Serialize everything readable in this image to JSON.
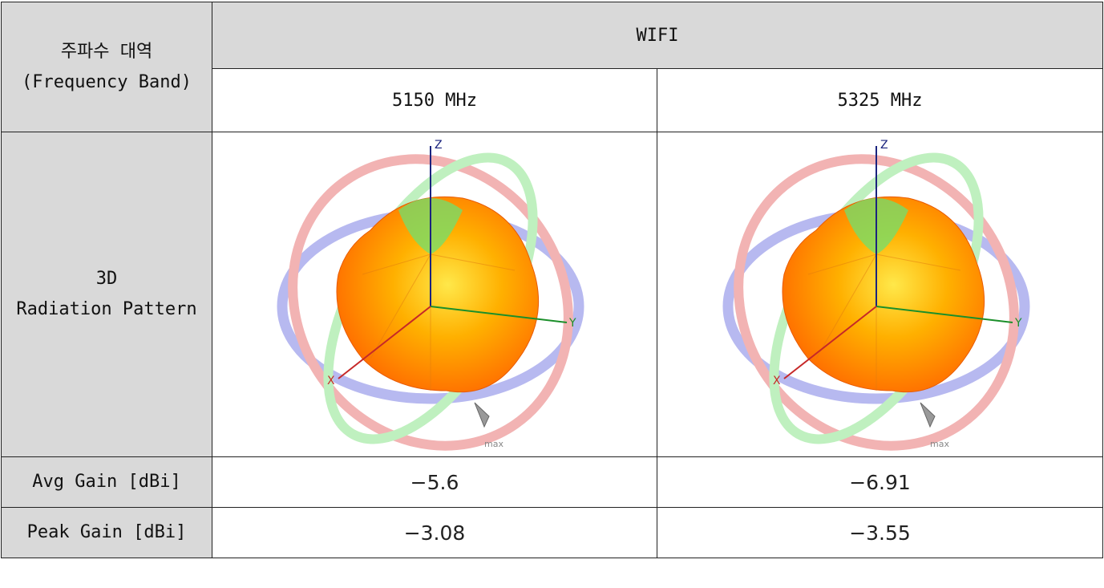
{
  "table": {
    "band_label_kr": "주파수 대역",
    "band_label_en": "(Frequency Band)",
    "band_name": "WIFI",
    "freq_1": "5150 MHz",
    "freq_2": "5325 MHz",
    "pattern_label_1": "3D",
    "pattern_label_2": "Radiation Pattern",
    "avg_gain_label": "Avg Gain [dBi]",
    "peak_gain_label": "Peak Gain [dBi]",
    "avg_gain_1": "−5.6",
    "avg_gain_2": "−6.91",
    "peak_gain_1": "−3.08",
    "peak_gain_2": "−3.55"
  },
  "plot": {
    "axis_z": "Z",
    "axis_y": "Y",
    "axis_x": "X",
    "max_marker": "max",
    "colors": {
      "ring_blue": "#b7b9f0",
      "ring_red": "#f2b3b3",
      "ring_green": "#bff0bf",
      "surface_hot": "#ff6a00",
      "surface_mid": "#ffb000",
      "surface_light": "#ffe84a",
      "surface_cool": "#6fe06f"
    }
  }
}
